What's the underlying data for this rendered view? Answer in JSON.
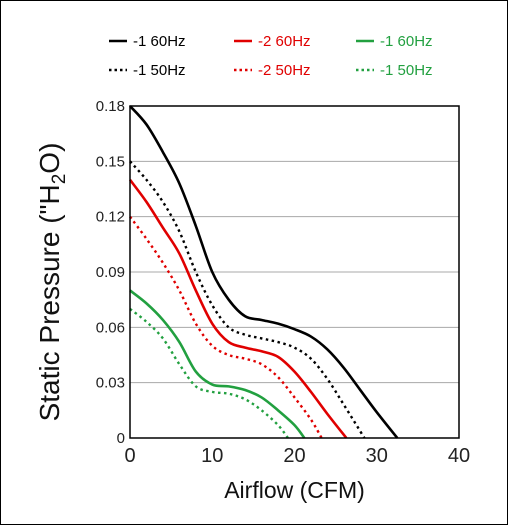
{
  "chart_data": {
    "type": "line",
    "title": "",
    "xlabel": "Airflow (CFM)",
    "ylabel_main": "Static Pressure (\"H",
    "ylabel_sub": "2",
    "ylabel_end": "O)",
    "xlim": [
      0,
      40
    ],
    "ylim": [
      0,
      0.18
    ],
    "x_ticks": [
      0,
      10,
      20,
      30,
      40
    ],
    "x_tick_labels": [
      "0",
      "10",
      "20",
      "30",
      "40"
    ],
    "y_ticks": [
      0,
      0.03,
      0.06,
      0.09,
      0.12,
      0.15,
      0.18
    ],
    "y_tick_labels": [
      "0",
      "0.03",
      "0.06",
      "0.09",
      "0.12",
      "0.15",
      "0.18"
    ],
    "grid": "horizontal",
    "legend_position": "top",
    "series": [
      {
        "name": "-1 60Hz",
        "color": "#000000",
        "dash": "solid",
        "points": [
          [
            0,
            0.18
          ],
          [
            2,
            0.17
          ],
          [
            4,
            0.155
          ],
          [
            6,
            0.138
          ],
          [
            8,
            0.115
          ],
          [
            10,
            0.09
          ],
          [
            12,
            0.075
          ],
          [
            14,
            0.066
          ],
          [
            16,
            0.064
          ],
          [
            18,
            0.062
          ],
          [
            20,
            0.059
          ],
          [
            22,
            0.055
          ],
          [
            24,
            0.048
          ],
          [
            26,
            0.038
          ],
          [
            28,
            0.026
          ],
          [
            30,
            0.014
          ],
          [
            32.5,
            0
          ]
        ]
      },
      {
        "name": "-1 50Hz",
        "color": "#000000",
        "dash": "dotted",
        "points": [
          [
            0,
            0.15
          ],
          [
            2,
            0.14
          ],
          [
            4,
            0.128
          ],
          [
            6,
            0.112
          ],
          [
            8,
            0.09
          ],
          [
            10,
            0.072
          ],
          [
            12,
            0.06
          ],
          [
            14,
            0.056
          ],
          [
            16,
            0.054
          ],
          [
            18,
            0.052
          ],
          [
            20,
            0.049
          ],
          [
            22,
            0.043
          ],
          [
            24,
            0.032
          ],
          [
            26,
            0.018
          ],
          [
            28.5,
            0
          ]
        ]
      },
      {
        "name": "-2 60Hz",
        "color": "#e00000",
        "dash": "solid",
        "points": [
          [
            0,
            0.14
          ],
          [
            2,
            0.128
          ],
          [
            4,
            0.114
          ],
          [
            6,
            0.1
          ],
          [
            8,
            0.08
          ],
          [
            10,
            0.062
          ],
          [
            12,
            0.052
          ],
          [
            14,
            0.049
          ],
          [
            16,
            0.047
          ],
          [
            18,
            0.044
          ],
          [
            20,
            0.036
          ],
          [
            22,
            0.025
          ],
          [
            24,
            0.013
          ],
          [
            26.3,
            0
          ]
        ]
      },
      {
        "name": "-2 50Hz",
        "color": "#e00000",
        "dash": "dotted",
        "points": [
          [
            0,
            0.12
          ],
          [
            2,
            0.108
          ],
          [
            4,
            0.095
          ],
          [
            6,
            0.08
          ],
          [
            8,
            0.062
          ],
          [
            10,
            0.05
          ],
          [
            12,
            0.045
          ],
          [
            14,
            0.043
          ],
          [
            16,
            0.04
          ],
          [
            18,
            0.033
          ],
          [
            20,
            0.022
          ],
          [
            22,
            0.01
          ],
          [
            23.3,
            0
          ]
        ]
      },
      {
        "name": "-1 60Hz",
        "color": "#22a040",
        "dash": "solid",
        "points": [
          [
            0,
            0.08
          ],
          [
            2,
            0.073
          ],
          [
            4,
            0.064
          ],
          [
            6,
            0.052
          ],
          [
            8,
            0.036
          ],
          [
            10,
            0.029
          ],
          [
            12,
            0.028
          ],
          [
            14,
            0.026
          ],
          [
            16,
            0.022
          ],
          [
            18,
            0.015
          ],
          [
            20,
            0.007
          ],
          [
            21.2,
            0
          ]
        ]
      },
      {
        "name": "-1 50Hz",
        "color": "#22a040",
        "dash": "dotted",
        "points": [
          [
            0,
            0.07
          ],
          [
            2,
            0.063
          ],
          [
            4,
            0.054
          ],
          [
            6,
            0.04
          ],
          [
            8,
            0.028
          ],
          [
            10,
            0.025
          ],
          [
            12,
            0.024
          ],
          [
            14,
            0.021
          ],
          [
            16,
            0.015
          ],
          [
            18,
            0.007
          ],
          [
            19.2,
            0
          ]
        ]
      }
    ]
  }
}
